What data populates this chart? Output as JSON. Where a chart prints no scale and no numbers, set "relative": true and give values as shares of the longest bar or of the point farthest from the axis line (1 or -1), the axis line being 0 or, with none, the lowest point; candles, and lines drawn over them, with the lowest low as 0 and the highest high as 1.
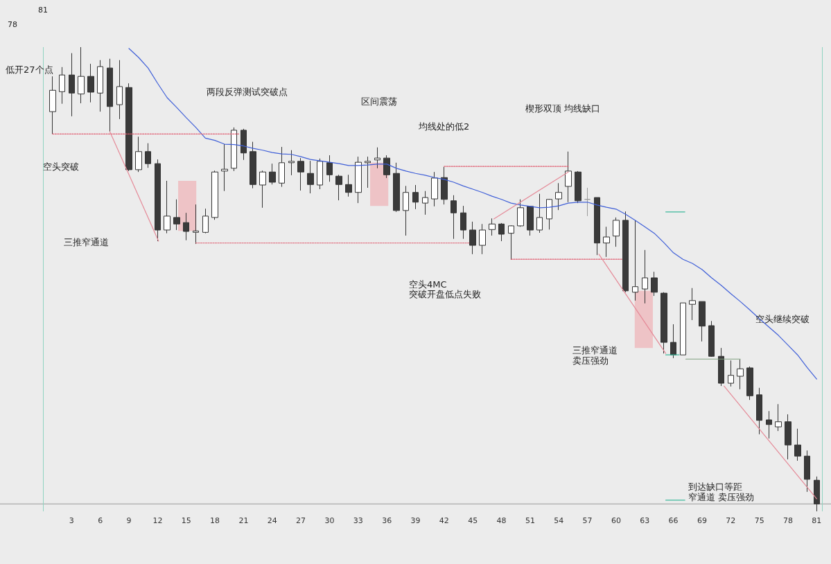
{
  "chart_data": {
    "type": "candlestick",
    "relative": true,
    "marker": "none",
    "x": [
      1,
      2,
      3,
      4,
      5,
      6,
      7,
      8,
      9,
      10,
      11,
      12,
      13,
      14,
      15,
      16,
      17,
      18,
      19,
      20,
      21,
      22,
      23,
      24,
      25,
      26,
      27,
      28,
      29,
      30,
      31,
      32,
      33,
      34,
      35,
      36,
      37,
      38,
      39,
      40,
      41,
      42,
      43,
      44,
      45,
      46,
      47,
      48,
      49,
      50,
      51,
      52,
      53,
      54,
      55,
      56,
      57,
      58,
      59,
      60,
      61,
      62,
      63,
      64,
      65,
      66,
      67,
      68,
      69,
      70,
      71,
      72,
      73,
      74,
      75,
      76,
      77,
      78,
      79,
      80,
      81
    ],
    "xlim": [
      -4.5,
      82.5
    ],
    "xticks": [
      3,
      6,
      9,
      12,
      15,
      18,
      21,
      24,
      27,
      30,
      33,
      36,
      39,
      42,
      45,
      48,
      51,
      54,
      57,
      60,
      63,
      66,
      69,
      72,
      75,
      78,
      81
    ],
    "series": [
      {
        "color": "#333333",
        "colors": [
          "#ffffff",
          "#ffffff",
          "#3a3a3a",
          "#ffffff",
          "#3a3a3a",
          "#ffffff",
          "#3a3a3a",
          "#ffffff",
          "#3a3a3a",
          "#ffffff",
          "#3a3a3a",
          "#3a3a3a",
          "#ffffff",
          "#3a3a3a",
          "#3a3a3a",
          "#ffffff",
          "#ffffff",
          "#ffffff",
          "#ffffff",
          "#ffffff",
          "#3a3a3a",
          "#3a3a3a",
          "#ffffff",
          "#3a3a3a",
          "#ffffff",
          "#ffffff",
          "#3a3a3a",
          "#3a3a3a",
          "#ffffff",
          "#3a3a3a",
          "#3a3a3a",
          "#3a3a3a",
          "#ffffff",
          "#ffffff",
          "#ffffff",
          "#3a3a3a",
          "#3a3a3a",
          "#ffffff",
          "#3a3a3a",
          "#ffffff",
          "#ffffff",
          "#3a3a3a",
          "#3a3a3a",
          "#3a3a3a",
          "#3a3a3a",
          "#ffffff",
          "#ffffff",
          "#3a3a3a",
          "#ffffff",
          "#ffffff",
          "#3a3a3a",
          "#ffffff",
          "#ffffff",
          "#ffffff",
          "#ffffff",
          "#3a3a3a",
          "#9a9a9a",
          "#3a3a3a",
          "#ffffff",
          "#ffffff",
          "#3a3a3a",
          "#ffffff",
          "#ffffff",
          "#3a3a3a",
          "#3a3a3a",
          "#3a3a3a",
          "#ffffff",
          "#ffffff",
          "#3a3a3a",
          "#3a3a3a",
          "#3a3a3a",
          "#ffffff",
          "#ffffff",
          "#3a3a3a",
          "#3a3a3a",
          "#3a3a3a",
          "#ffffff",
          "#3a3a3a",
          "#3a3a3a",
          "#3a3a3a",
          "#3a3a3a"
        ],
        "ohlc": [
          [
            0.861,
            0.937,
            0.813,
            0.907
          ],
          [
            0.904,
            0.957,
            0.878,
            0.94
          ],
          [
            0.94,
            0.987,
            0.851,
            0.901
          ],
          [
            0.899,
            1,
            0.879,
            0.937
          ],
          [
            0.937,
            0.964,
            0.881,
            0.903
          ],
          [
            0.901,
            0.972,
            0.861,
            0.958
          ],
          [
            0.955,
            0.975,
            0.818,
            0.872
          ],
          [
            0.876,
            0.972,
            0.845,
            0.915
          ],
          [
            0.913,
            0.922,
            0.733,
            0.736
          ],
          [
            0.736,
            0.807,
            0.731,
            0.775
          ],
          [
            0.775,
            0.793,
            0.74,
            0.749
          ],
          [
            0.749,
            0.758,
            0.582,
            0.606
          ],
          [
            0.606,
            0.712,
            0.599,
            0.636
          ],
          [
            0.633,
            0.672,
            0.606,
            0.619
          ],
          [
            0.622,
            0.643,
            0.584,
            0.603
          ],
          [
            0.601,
            0.661,
            0.576,
            0.604
          ],
          [
            0.601,
            0.652,
            0.599,
            0.636
          ],
          [
            0.633,
            0.734,
            0.628,
            0.731
          ],
          [
            0.733,
            0.791,
            0.69,
            0.737
          ],
          [
            0.739,
            0.827,
            0.733,
            0.821
          ],
          [
            0.821,
            0.824,
            0.757,
            0.772
          ],
          [
            0.775,
            0.796,
            0.696,
            0.704
          ],
          [
            0.703,
            0.734,
            0.654,
            0.731
          ],
          [
            0.731,
            0.749,
            0.704,
            0.709
          ],
          [
            0.707,
            0.785,
            0.699,
            0.751
          ],
          [
            0.751,
            0.778,
            0.724,
            0.754
          ],
          [
            0.754,
            0.761,
            0.691,
            0.731
          ],
          [
            0.728,
            0.755,
            0.685,
            0.704
          ],
          [
            0.703,
            0.76,
            0.694,
            0.754
          ],
          [
            0.751,
            0.767,
            0.71,
            0.725
          ],
          [
            0.722,
            0.725,
            0.67,
            0.704
          ],
          [
            0.704,
            0.725,
            0.678,
            0.687
          ],
          [
            0.687,
            0.764,
            0.664,
            0.752
          ],
          [
            0.751,
            0.764,
            0.697,
            0.754
          ],
          [
            0.757,
            0.784,
            0.739,
            0.761
          ],
          [
            0.761,
            0.767,
            0.718,
            0.725
          ],
          [
            0.728,
            0.751,
            0.645,
            0.648
          ],
          [
            0.648,
            0.701,
            0.594,
            0.687
          ],
          [
            0.687,
            0.703,
            0.651,
            0.666
          ],
          [
            0.664,
            0.69,
            0.639,
            0.676
          ],
          [
            0.673,
            0.731,
            0.657,
            0.718
          ],
          [
            0.719,
            0.742,
            0.661,
            0.672
          ],
          [
            0.669,
            0.681,
            0.587,
            0.643
          ],
          [
            0.643,
            0.658,
            0.587,
            0.606
          ],
          [
            0.606,
            0.624,
            0.554,
            0.573
          ],
          [
            0.573,
            0.619,
            0.554,
            0.606
          ],
          [
            0.607,
            0.631,
            0.594,
            0.619
          ],
          [
            0.619,
            0.621,
            0.582,
            0.597
          ],
          [
            0.599,
            0.616,
            0.542,
            0.615
          ],
          [
            0.615,
            0.672,
            0.613,
            0.654
          ],
          [
            0.657,
            0.658,
            0.594,
            0.606
          ],
          [
            0.606,
            0.684,
            0.6,
            0.633
          ],
          [
            0.63,
            0.673,
            0.607,
            0.672
          ],
          [
            0.673,
            0.707,
            0.649,
            0.687
          ],
          [
            0.7,
            0.775,
            0.666,
            0.733
          ],
          [
            0.731,
            0.733,
            0.664,
            0.669
          ],
          [
            0.672,
            0.697,
            0.636,
            0.672
          ],
          [
            0.676,
            0.676,
            0.552,
            0.578
          ],
          [
            0.578,
            0.613,
            0.548,
            0.591
          ],
          [
            0.593,
            0.633,
            0.57,
            0.627
          ],
          [
            0.627,
            0.646,
            0.472,
            0.475
          ],
          [
            0.472,
            0.627,
            0.454,
            0.484
          ],
          [
            0.479,
            0.563,
            0.448,
            0.503
          ],
          [
            0.503,
            0.516,
            0.464,
            0.472
          ],
          [
            0.47,
            0.472,
            0.34,
            0.364
          ],
          [
            0.364,
            0.403,
            0.33,
            0.337
          ],
          [
            0.337,
            0.449,
            0.337,
            0.449
          ],
          [
            0.446,
            0.481,
            0.412,
            0.454
          ],
          [
            0.452,
            0.452,
            0.366,
            0.399
          ],
          [
            0.4,
            0.41,
            0.333,
            0.334
          ],
          [
            0.334,
            0.352,
            0.27,
            0.276
          ],
          [
            0.276,
            0.325,
            0.269,
            0.293
          ],
          [
            0.291,
            0.327,
            0.263,
            0.307
          ],
          [
            0.309,
            0.312,
            0.24,
            0.249
          ],
          [
            0.251,
            0.266,
            0.166,
            0.196
          ],
          [
            0.197,
            0.216,
            0.157,
            0.187
          ],
          [
            0.182,
            0.231,
            0.173,
            0.193
          ],
          [
            0.193,
            0.209,
            0.112,
            0.143
          ],
          [
            0.143,
            0.178,
            0.109,
            0.119
          ],
          [
            0.119,
            0.131,
            0.042,
            0.069
          ],
          [
            0.067,
            0.075,
            0,
            0.016
          ]
        ]
      },
      {
        "type": "line",
        "color": "#3f5fd8",
        "values": [
          null,
          null,
          null,
          null,
          null,
          null,
          null,
          null,
          0.997,
          0.978,
          0.955,
          0.922,
          0.891,
          0.87,
          0.848,
          0.827,
          0.804,
          0.799,
          0.791,
          0.79,
          0.787,
          0.782,
          0.778,
          0.773,
          0.77,
          0.769,
          0.764,
          0.758,
          0.755,
          0.752,
          0.749,
          0.745,
          0.745,
          0.746,
          0.748,
          0.748,
          0.739,
          0.733,
          0.728,
          0.724,
          0.719,
          0.715,
          0.709,
          0.701,
          0.694,
          0.687,
          0.679,
          0.672,
          0.664,
          0.66,
          0.657,
          0.654,
          0.655,
          0.658,
          0.664,
          0.666,
          0.666,
          0.66,
          0.655,
          0.651,
          0.64,
          0.627,
          0.613,
          0.599,
          0.579,
          0.557,
          0.543,
          0.534,
          0.521,
          0.503,
          0.487,
          0.469,
          0.452,
          0.434,
          0.415,
          0.397,
          0.379,
          0.358,
          0.337,
          0.31,
          0.285
        ]
      },
      {
        "type": "line",
        "color": "#e05a6e",
        "line_style": "dotted",
        "x": [
          1,
          20.5
        ],
        "values": [
          0.813,
          0.813
        ]
      },
      {
        "type": "line",
        "color": "#e05a6e",
        "line_style": "dotted",
        "x": [
          16,
          44.6
        ],
        "values": [
          0.578,
          0.578
        ]
      },
      {
        "type": "line",
        "color": "#e05a6e",
        "line_style": "dotted",
        "x": [
          42,
          55
        ],
        "values": [
          0.743,
          0.743
        ]
      },
      {
        "type": "line",
        "color": "#e05a6e",
        "line_style": "dotted",
        "x": [
          49,
          60.6
        ],
        "values": [
          0.543,
          0.543
        ]
      },
      {
        "type": "line",
        "color": "#e58a98",
        "line_style": "solid",
        "x": [
          7,
          12.1
        ],
        "values": [
          0.818,
          0.582
        ]
      },
      {
        "type": "line",
        "color": "#e58a98",
        "line_style": "solid",
        "x": [
          47.2,
          55
        ],
        "values": [
          0.63,
          0.731
        ]
      },
      {
        "type": "line",
        "color": "#e58a98",
        "line_style": "solid",
        "x": [
          58.2,
          65.2
        ],
        "values": [
          0.554,
          0.34
        ]
      },
      {
        "type": "line",
        "color": "#e58a98",
        "line_style": "solid",
        "x": [
          71.3,
          81
        ],
        "values": [
          0.27,
          0.027
        ]
      },
      {
        "type": "line",
        "color": "#3bb89a",
        "line_style": "solid",
        "x": [
          65.2,
          67.2
        ],
        "values": [
          0.645,
          0.645
        ]
      },
      {
        "type": "line",
        "color": "#3bb89a",
        "line_style": "solid",
        "x": [
          65.2,
          66.6
        ],
        "values": [
          0.337,
          0.337
        ]
      },
      {
        "type": "line",
        "color": "#3bb89a",
        "line_style": "solid",
        "x": [
          65.2,
          67.2
        ],
        "values": [
          0.024,
          0.024
        ]
      },
      {
        "type": "line",
        "color": "#7fa07f",
        "line_style": "solid",
        "x": [
          67.3,
          73
        ],
        "values": [
          0.328,
          0.328
        ]
      },
      {
        "type": "bar",
        "color": "#eec3c6",
        "x": [
          15.1,
          35.2,
          62.9
        ],
        "base": [
          0.604,
          0.658,
          0.352
        ],
        "values": [
          0.108,
          0.093,
          0.123
        ]
      }
    ],
    "ref_lines": [
      {
        "axis": "x",
        "value": 0,
        "color": "#8fd3c0"
      },
      {
        "axis": "x",
        "value": 81.6,
        "color": "#8fd3c0"
      },
      {
        "axis": "y",
        "value": 0.016,
        "color": "#999999"
      }
    ],
    "annotations": [
      "81",
      "78",
      "低开27个点",
      "两段反弹测试突破点",
      "区间震荡",
      "均线处的低2",
      "楔形双顶 均线缺口",
      "空头突破",
      "三推窄通道",
      "空头4MC",
      "突破开盘低点失败",
      "三推窄通道",
      "卖压强劲",
      "空头继续突破",
      "到达缺口等距",
      "窄通道 卖压强劲"
    ]
  }
}
